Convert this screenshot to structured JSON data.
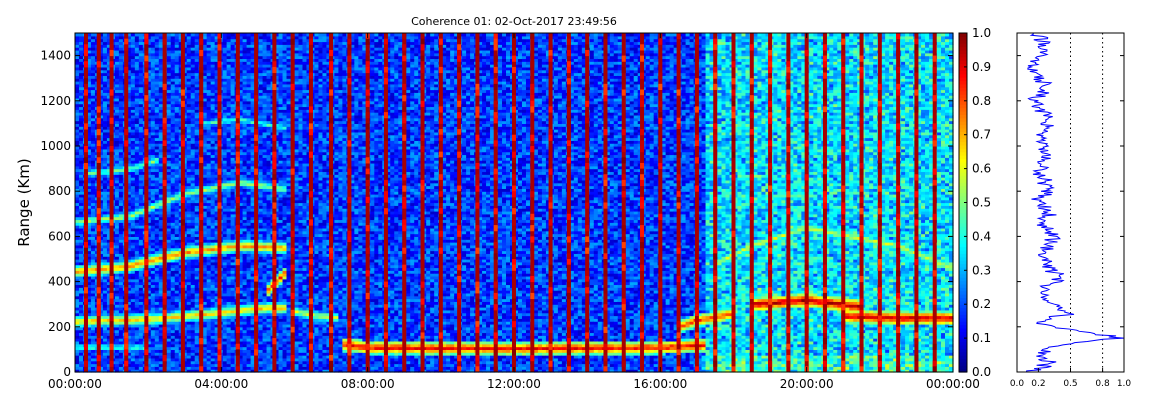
{
  "chart_data": [
    {
      "type": "heatmap",
      "title": "Coherence 01: 02-Oct-2017 23:49:56",
      "xlabel": "",
      "ylabel": "Range (Km)",
      "xlim": [
        "00:00:00",
        "24:00:00"
      ],
      "ylim": [
        0,
        1500
      ],
      "xticks": [
        "00:00:00",
        "04:00:00",
        "08:00:00",
        "12:00:00",
        "16:00:00",
        "20:00:00",
        "00:00:00"
      ],
      "yticks": [
        0,
        200,
        400,
        600,
        800,
        1000,
        1200,
        1400
      ],
      "colormap": "jet",
      "colorbar": {
        "range": [
          0.0,
          1.0
        ],
        "ticks": [
          "0.0",
          "0.1",
          "0.2",
          "0.3",
          "0.4",
          "0.5",
          "0.6",
          "0.7",
          "0.8",
          "0.9",
          "1.0"
        ]
      },
      "background_level": 0.18,
      "red_stripe_times_h": [
        0.3,
        0.65,
        1.0,
        1.4,
        1.95,
        2.45,
        2.95,
        3.45,
        3.95,
        4.45,
        4.95,
        5.45,
        5.95,
        6.45,
        7.0,
        7.5,
        8.0,
        8.5,
        9.0,
        9.5,
        10.0,
        10.5,
        11.0,
        11.5,
        12.0,
        12.5,
        13.0,
        13.5,
        14.0,
        14.5,
        15.0,
        15.5,
        16.0,
        16.5,
        17.0,
        17.5,
        18.0,
        18.5,
        19.0,
        19.5,
        20.0,
        20.5,
        21.0,
        21.5,
        22.0,
        22.5,
        23.0,
        23.5
      ],
      "layers": [
        {
          "t": [
            0.0,
            2.0,
            3.5,
            4.3,
            5.2,
            5.8
          ],
          "range_km": [
            225,
            235,
            255,
            270,
            285,
            285
          ],
          "level": 0.7
        },
        {
          "t": [
            0.0,
            1.5,
            3.0,
            4.5,
            5.8
          ],
          "range_km": [
            445,
            470,
            530,
            560,
            550
          ],
          "level": 0.75
        },
        {
          "t": [
            5.2,
            5.5,
            5.8
          ],
          "range_km": [
            350,
            400,
            450
          ],
          "level": 0.85
        },
        {
          "t": [
            0.0,
            1.5,
            3.0,
            4.5,
            5.8
          ],
          "range_km": [
            665,
            690,
            790,
            840,
            810
          ],
          "level": 0.55
        },
        {
          "t": [
            3.5,
            4.5,
            5.8
          ],
          "range_km": [
            1100,
            1120,
            1080
          ],
          "level": 0.45
        },
        {
          "t": [
            0.3,
            1.5,
            2.3
          ],
          "range_km": [
            880,
            900,
            940
          ],
          "level": 0.5
        },
        {
          "t": [
            0.0,
            1.0,
            2.0
          ],
          "range_km": [
            110,
            112,
            110
          ],
          "level": 0.45
        },
        {
          "t": [
            6.0,
            6.6,
            7.2
          ],
          "range_km": [
            270,
            250,
            240
          ],
          "level": 0.6
        },
        {
          "t": [
            7.3,
            8.0,
            12.0,
            16.0,
            17.2
          ],
          "range_km": [
            125,
            110,
            105,
            110,
            120
          ],
          "level": 0.9
        },
        {
          "t": [
            16.5,
            17.0,
            18.0
          ],
          "range_km": [
            200,
            230,
            260
          ],
          "level": 0.85
        },
        {
          "t": [
            18.5,
            20.0,
            21.5
          ],
          "range_km": [
            300,
            320,
            290
          ],
          "level": 0.97
        },
        {
          "t": [
            21.0,
            22.5,
            24.0
          ],
          "range_km": [
            250,
            240,
            240
          ],
          "level": 0.95
        },
        {
          "t": [
            17.5,
            18.5,
            20.0,
            22.5,
            24.0
          ],
          "range_km": [
            480,
            560,
            640,
            560,
            460
          ],
          "level": 0.6
        },
        {
          "t": [
            18.0,
            20.0,
            22.5
          ],
          "range_km": [
            740,
            800,
            880
          ],
          "level": 0.45
        }
      ]
    },
    {
      "type": "line",
      "title": "",
      "xlabel": "",
      "ylabel": "",
      "xlim": [
        0.0,
        1.0
      ],
      "ylim": [
        0,
        1500
      ],
      "xticks": [
        "0.0",
        "0.2",
        "0.5",
        "0.8",
        "1.0"
      ],
      "vlines": [
        0.5,
        0.8
      ],
      "series": [
        {
          "color": "#0000ff",
          "range_km": [
            0,
            40,
            80,
            120,
            150,
            180,
            200,
            220,
            240,
            260,
            280,
            300,
            340,
            380,
            420,
            460,
            500,
            560,
            600,
            650,
            700,
            760,
            800,
            850,
            900,
            950,
            1000,
            1050,
            1100,
            1150,
            1200,
            1250,
            1300,
            1350,
            1400,
            1450,
            1500
          ],
          "values": [
            0.15,
            0.3,
            0.2,
            0.35,
            0.97,
            0.6,
            0.35,
            0.2,
            0.3,
            0.55,
            0.4,
            0.35,
            0.25,
            0.3,
            0.4,
            0.3,
            0.25,
            0.3,
            0.35,
            0.25,
            0.3,
            0.2,
            0.3,
            0.25,
            0.2,
            0.3,
            0.25,
            0.2,
            0.3,
            0.25,
            0.15,
            0.3,
            0.2,
            0.15,
            0.2,
            0.25,
            0.2
          ]
        }
      ]
    }
  ],
  "colors": {
    "background": "#ffffff",
    "axis": "#000000",
    "profile_line": "#0000ff",
    "stripe": "#c00000"
  }
}
